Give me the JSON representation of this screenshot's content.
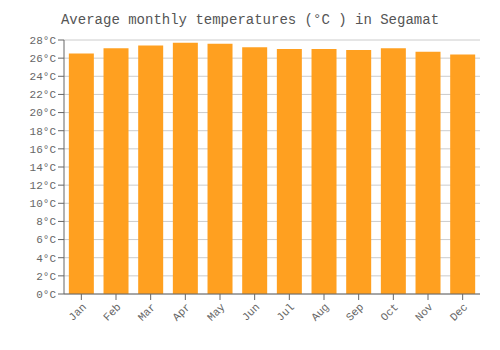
{
  "chart_data": {
    "type": "bar",
    "title": "Average monthly temperatures (°C ) in Segamat",
    "categories": [
      "Jan",
      "Feb",
      "Mar",
      "Apr",
      "May",
      "Jun",
      "Jul",
      "Aug",
      "Sep",
      "Oct",
      "Nov",
      "Dec"
    ],
    "values": [
      26.5,
      27.1,
      27.4,
      27.7,
      27.6,
      27.2,
      27.0,
      27.0,
      26.9,
      27.1,
      26.7,
      26.4
    ],
    "color": "#FFA020",
    "ylim": [
      0,
      28
    ],
    "yticks": [
      {
        "value": 0,
        "label": "0°C"
      },
      {
        "value": 2,
        "label": "2°C"
      },
      {
        "value": 4,
        "label": "4°C"
      },
      {
        "value": 6,
        "label": "6°C"
      },
      {
        "value": 8,
        "label": "8°C"
      },
      {
        "value": 10,
        "label": "10°C"
      },
      {
        "value": 12,
        "label": "12°C"
      },
      {
        "value": 14,
        "label": "14°C"
      },
      {
        "value": 16,
        "label": "16°C"
      },
      {
        "value": 18,
        "label": "18°C"
      },
      {
        "value": 20,
        "label": "20°C"
      },
      {
        "value": 22,
        "label": "22°C"
      },
      {
        "value": 24,
        "label": "24°C"
      },
      {
        "value": 26,
        "label": "26°C"
      },
      {
        "value": 28,
        "label": "28°C"
      }
    ],
    "grid": true
  }
}
